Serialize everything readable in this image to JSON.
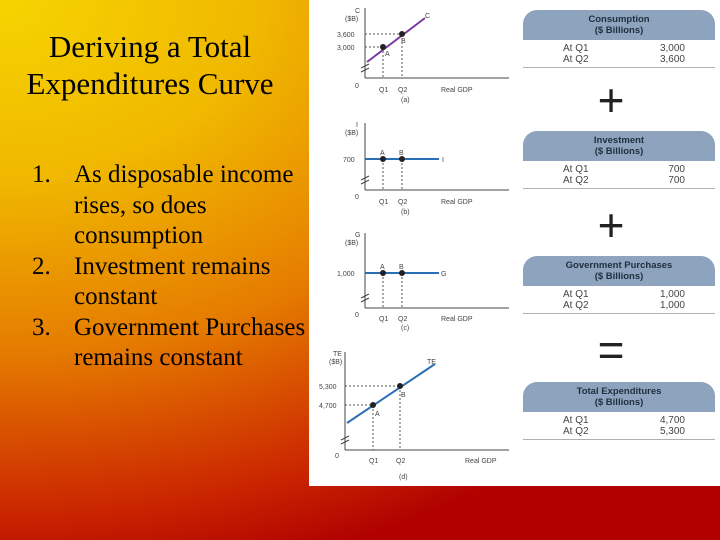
{
  "slide": {
    "title": "Deriving a Total Expenditures Curve",
    "points": [
      {
        "num": "1.",
        "text": "As disposable income rises, so does consumption"
      },
      {
        "num": "2.",
        "text": "Investment remains constant"
      },
      {
        "num": "3.",
        "text": "Government Purchases remains constant"
      }
    ]
  },
  "panels": [
    {
      "id": "a",
      "panel_label": "(a)",
      "y_label_top": "C",
      "y_label_unit": "($B)",
      "curve_label": "C",
      "x_axis_label": "Real GDP",
      "origin": "0",
      "y_ticks": [
        "3,600",
        "3,000"
      ],
      "x_ticks": [
        "Q1",
        "Q2"
      ],
      "points": [
        "A",
        "B"
      ],
      "line_color": "#7a3aa0"
    },
    {
      "id": "b",
      "panel_label": "(b)",
      "y_label_top": "I",
      "y_label_unit": "($B)",
      "curve_label": "I",
      "x_axis_label": "Real GDP",
      "origin": "0",
      "y_ticks": [
        "700"
      ],
      "x_ticks": [
        "Q1",
        "Q2"
      ],
      "points": [
        "A",
        "B"
      ],
      "line_color": "#2a6fb5"
    },
    {
      "id": "c",
      "panel_label": "(c)",
      "y_label_top": "G",
      "y_label_unit": "($B)",
      "curve_label": "G",
      "x_axis_label": "Real GDP",
      "origin": "0",
      "y_ticks": [
        "1,000"
      ],
      "x_ticks": [
        "Q1",
        "Q2"
      ],
      "points": [
        "A",
        "B"
      ],
      "line_color": "#2a6fb5"
    },
    {
      "id": "d",
      "panel_label": "(d)",
      "y_label_top": "TE",
      "y_label_unit": "($B)",
      "curve_label": "TE",
      "x_axis_label": "Real GDP",
      "origin": "0",
      "y_ticks": [
        "5,300",
        "4,700"
      ],
      "x_ticks": [
        "Q1",
        "Q2"
      ],
      "points": [
        "A",
        "B"
      ],
      "line_color": "#2a6fb5"
    }
  ],
  "tables": [
    {
      "id": "consumption",
      "title_line1": "Consumption",
      "title_line2": "($ Billions)",
      "rows": [
        {
          "label": "At Q1",
          "value": "3,000"
        },
        {
          "label": "At Q2",
          "value": "3,600"
        }
      ]
    },
    {
      "id": "investment",
      "title_line1": "Investment",
      "title_line2": "($ Billions)",
      "rows": [
        {
          "label": "At Q1",
          "value": "700"
        },
        {
          "label": "At Q2",
          "value": "700"
        }
      ]
    },
    {
      "id": "government",
      "title_line1": "Government Purchases",
      "title_line2": "($ Billions)",
      "rows": [
        {
          "label": "At Q1",
          "value": "1,000"
        },
        {
          "label": "At Q2",
          "value": "1,000"
        }
      ]
    },
    {
      "id": "total",
      "title_line1": "Total Expenditures",
      "title_line2": "($ Billions)",
      "rows": [
        {
          "label": "At Q1",
          "value": "4,700"
        },
        {
          "label": "At Q2",
          "value": "5,300"
        }
      ]
    }
  ],
  "operators": {
    "plus_1": "+",
    "plus_2": "+",
    "equals": "="
  }
}
